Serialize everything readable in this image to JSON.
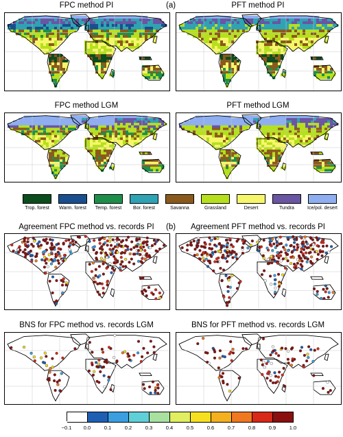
{
  "panel_a_label": "(a)",
  "panel_b_label": "(b)",
  "maps": [
    {
      "title": "FPC method PI",
      "mode": "veg",
      "variant": "fpc_pi"
    },
    {
      "title": "PFT method PI",
      "mode": "veg",
      "variant": "pft_pi"
    },
    {
      "title": "FPC method LGM",
      "mode": "veg",
      "variant": "fpc_lgm"
    },
    {
      "title": "PFT method LGM",
      "mode": "veg",
      "variant": "pft_lgm"
    },
    {
      "title": "Agreement FPC method vs. records PI",
      "mode": "dots",
      "variant": "pi"
    },
    {
      "title": "Agreement PFT method vs. records PI",
      "mode": "dots",
      "variant": "pi"
    },
    {
      "title": "BNS for FPC method vs. records LGM",
      "mode": "dots",
      "variant": "lgm"
    },
    {
      "title": "BNS for PFT method vs. records LGM",
      "mode": "dots",
      "variant": "lgm"
    }
  ],
  "vegetation_legend": [
    {
      "label": "Trop. forest",
      "color": "#0b4d1c"
    },
    {
      "label": "Warm. forest",
      "color": "#1a4f8f"
    },
    {
      "label": "Temp. forest",
      "color": "#1e8f4a"
    },
    {
      "label": "Bor. forest",
      "color": "#2fa3b3"
    },
    {
      "label": "Savanna",
      "color": "#8a5a1c"
    },
    {
      "label": "Grassland",
      "color": "#b6e01c"
    },
    {
      "label": "Desert",
      "color": "#f6f66a"
    },
    {
      "label": "Tundra",
      "color": "#6a55a3"
    },
    {
      "label": "Ice/pol. desert",
      "color": "#8eaef0"
    }
  ],
  "score_colorbar": {
    "ticks": [
      "−0.1",
      "0.0",
      "0.1",
      "0.2",
      "0.3",
      "0.4",
      "0.5",
      "0.6",
      "0.7",
      "0.8",
      "0.9",
      "1.0"
    ],
    "colors": [
      "#ffffff",
      "#1e5fb4",
      "#3a9ee0",
      "#5fd0d8",
      "#a8e0a0",
      "#e0ee60",
      "#f5e020",
      "#f5b020",
      "#f07820",
      "#d82818",
      "#8a1010"
    ]
  }
}
